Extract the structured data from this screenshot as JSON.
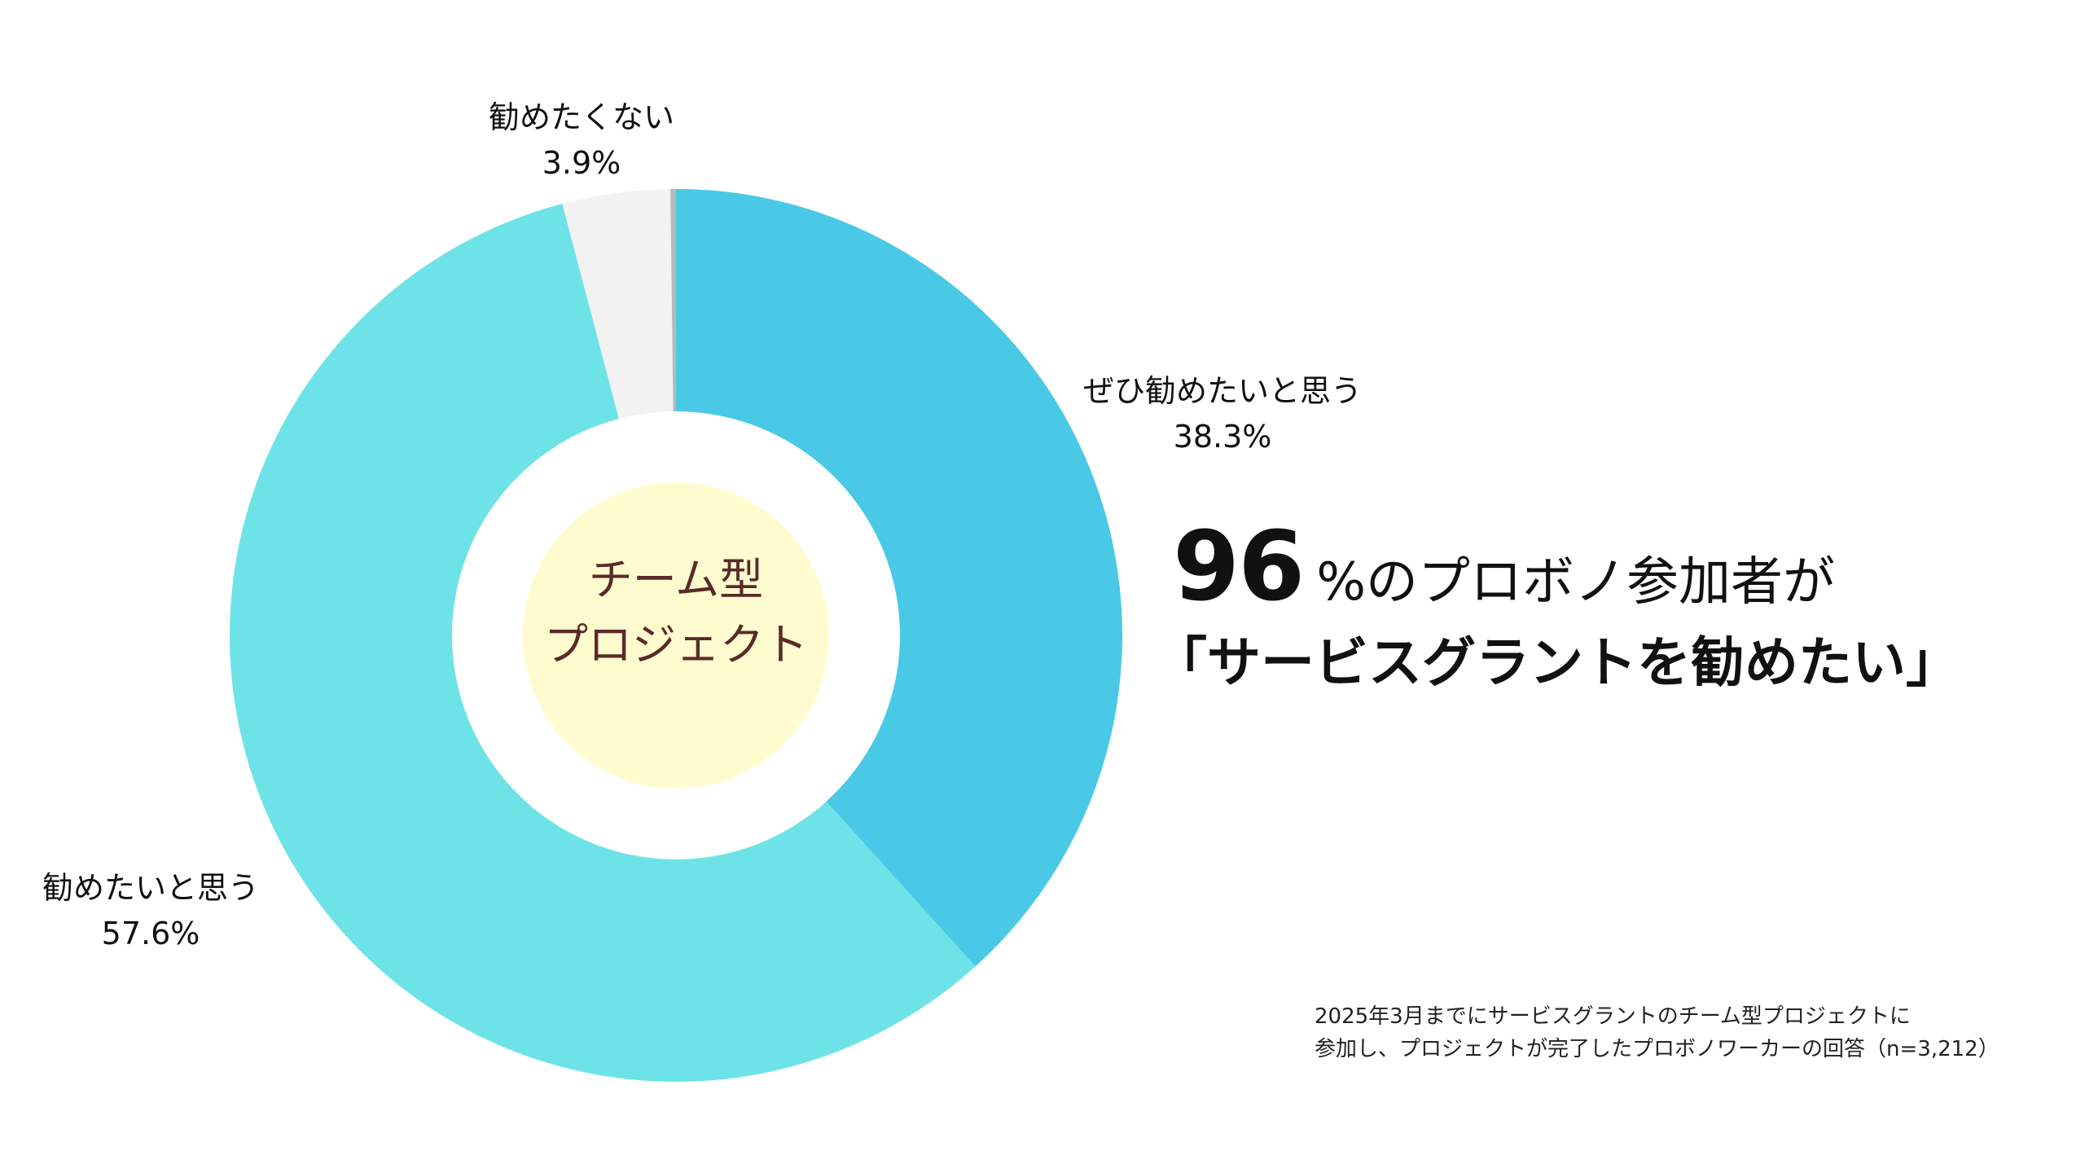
{
  "chart_data": {
    "type": "pie",
    "title": "",
    "center_label": [
      "チーム型",
      "プロジェクト"
    ],
    "slices": [
      {
        "label": "ぜひ勧めたいと思う",
        "value": 38.3,
        "value_label": "38.3%",
        "color": "#4ac9e6"
      },
      {
        "label": "勧めたいと思う",
        "value": 57.6,
        "value_label": "57.6%",
        "color": "#6de3e8"
      },
      {
        "label": "勧めたくない",
        "value": 3.9,
        "value_label": "3.9%",
        "color": "#f2f2f2"
      },
      {
        "label": "",
        "value": 0.2,
        "value_label": "",
        "color": "#b8b8b8"
      }
    ]
  },
  "headline": {
    "number": "96",
    "line1_rest": "%のプロボノ参加者が",
    "line2": "「サービスグラントを勧めたい」"
  },
  "footnote": {
    "line1": "2025年3月までにサービスグラントのチーム型プロジェクトに",
    "line2": "参加し、プロジェクトが完了したプロボノワーカーの回答（n=3,212）"
  },
  "colors": {
    "center_fill": "#fefccf",
    "center_text": "#5b2a2a"
  }
}
